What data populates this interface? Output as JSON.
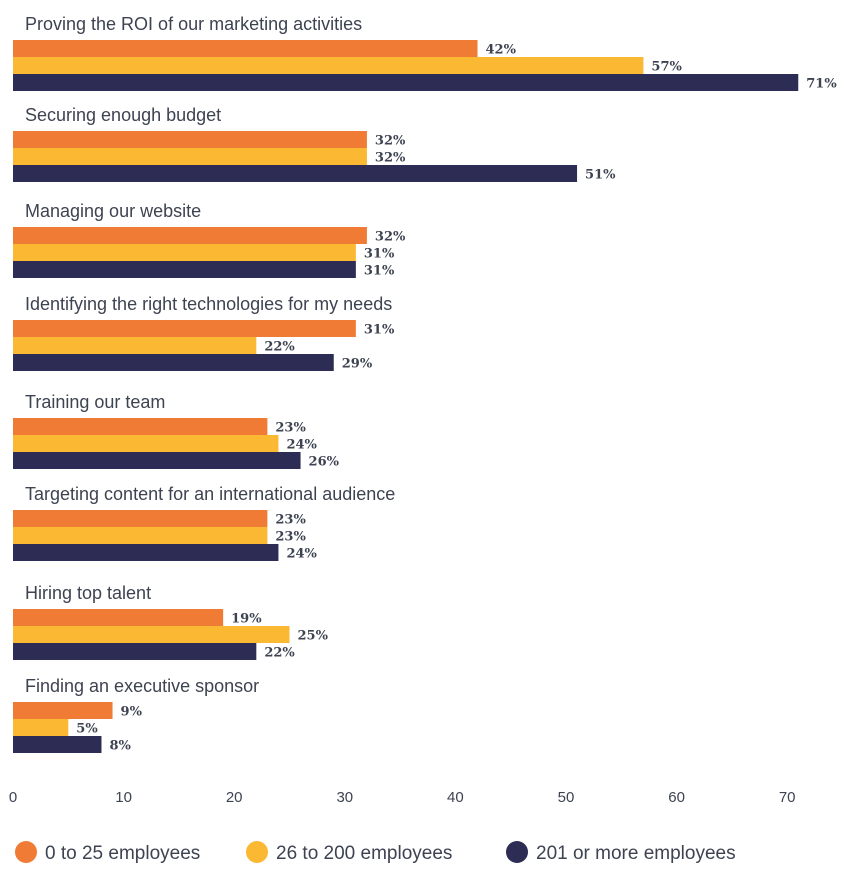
{
  "chart_data": {
    "type": "bar",
    "orientation": "horizontal",
    "categories": [
      "Proving the ROI of our marketing activities",
      "Securing enough budget",
      "Managing our website",
      "Identifying the right technologies for my needs",
      "Training our team",
      "Targeting content for an international audience",
      "Hiring top talent",
      "Finding an executive sponsor"
    ],
    "series": [
      {
        "name": "0 to 25 employees",
        "color": "#f07b35",
        "values": [
          42,
          32,
          32,
          31,
          23,
          23,
          19,
          9
        ]
      },
      {
        "name": "26 to 200 employees",
        "color": "#fbb933",
        "values": [
          57,
          32,
          31,
          22,
          24,
          23,
          25,
          5
        ]
      },
      {
        "name": "201 or more employees",
        "color": "#2c2c54",
        "values": [
          71,
          51,
          31,
          29,
          26,
          24,
          22,
          8
        ]
      }
    ],
    "value_suffix": "%",
    "xlim": [
      0,
      70
    ],
    "xticks": [
      0,
      10,
      20,
      30,
      40,
      50,
      60,
      70
    ],
    "grid": false,
    "legend_position": "bottom"
  }
}
